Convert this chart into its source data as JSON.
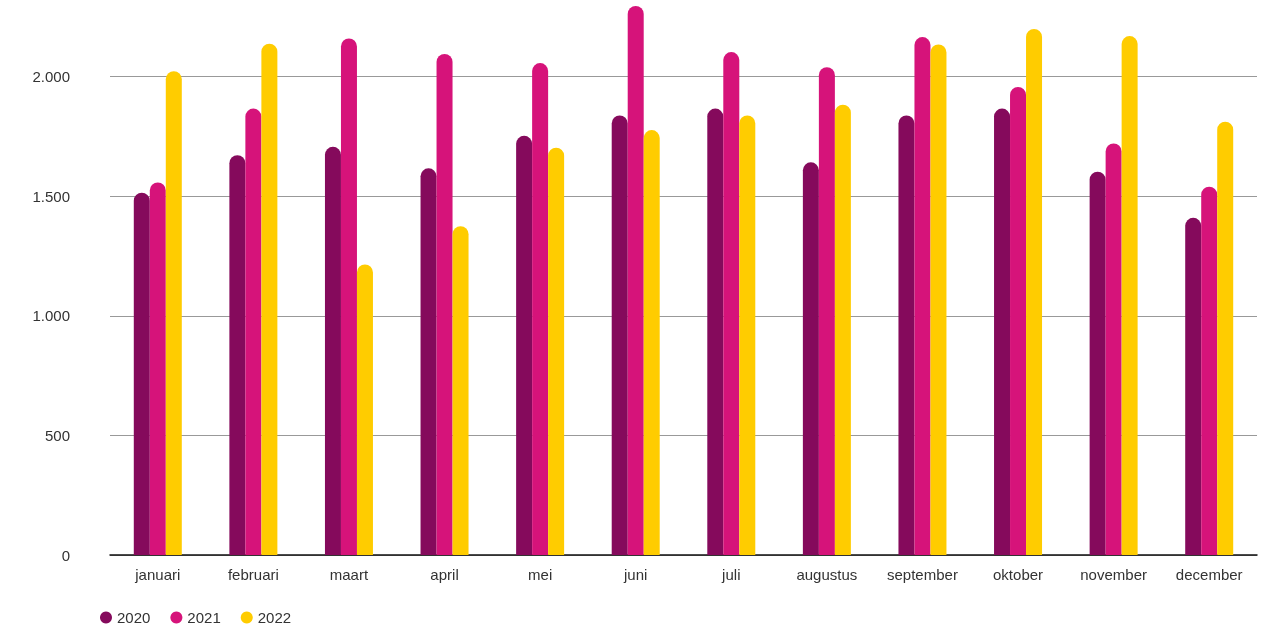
{
  "chart_data": {
    "type": "bar",
    "categories": [
      "januari",
      "februari",
      "maart",
      "april",
      "mei",
      "juni",
      "juli",
      "augustus",
      "september",
      "oktober",
      "november",
      "december"
    ],
    "series": [
      {
        "name": "2020",
        "color": "#850a5c",
        "values": [
          1515,
          1672,
          1707,
          1617,
          1753,
          1838,
          1867,
          1642,
          1838,
          1867,
          1603,
          1410
        ]
      },
      {
        "name": "2021",
        "color": "#d6137a",
        "values": [
          1558,
          1867,
          2160,
          2095,
          2057,
          2296,
          2103,
          2040,
          2166,
          1957,
          1721,
          1540
        ]
      },
      {
        "name": "2022",
        "color": "#ffcc00",
        "values": [
          2023,
          2138,
          1215,
          1375,
          1703,
          1777,
          1838,
          1883,
          2135,
          2200,
          2170,
          1812
        ]
      }
    ],
    "ylim": [
      0,
      2300
    ],
    "yticks": [
      0,
      500,
      {
        "value": 1000,
        "label": "1.000"
      },
      {
        "value": 1500,
        "label": "1.500"
      },
      {
        "value": 2000,
        "label": "2.000"
      }
    ],
    "grid": "y",
    "legend": "bottom left"
  }
}
